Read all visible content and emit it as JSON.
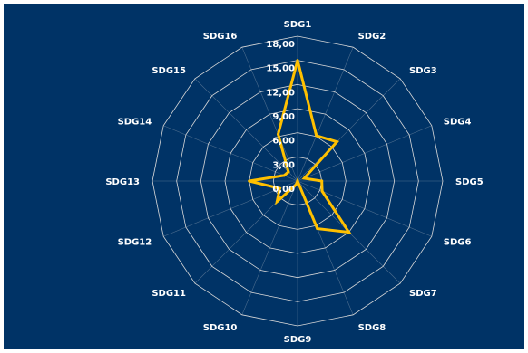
{
  "chart_data": {
    "type": "radar",
    "categories": [
      "SDG1",
      "SDG2",
      "SDG3",
      "SDG4",
      "SDG5",
      "SDG6",
      "SDG7",
      "SDG8",
      "SDG9",
      "SDG10",
      "SDG11",
      "SDG12",
      "SDG13",
      "SDG14",
      "SDG15",
      "SDG16"
    ],
    "ticks": [
      "0,00",
      "3,00",
      "6,00",
      "9,00",
      "12,00",
      "15,00",
      "18,00"
    ],
    "rlim": [
      0,
      18
    ],
    "series": [
      {
        "values": [
          15.0,
          6.1,
          6.9,
          0.9,
          3.0,
          3.3,
          9.0,
          6.4,
          0.0,
          0.5,
          3.6,
          2.4,
          6.0,
          1.8,
          1.6,
          6.3
        ]
      }
    ],
    "grid": true,
    "line_color": "#ffc000",
    "background_color": "#003366",
    "grid_color": "#d9d9d9",
    "text_color": "#ffffff"
  }
}
